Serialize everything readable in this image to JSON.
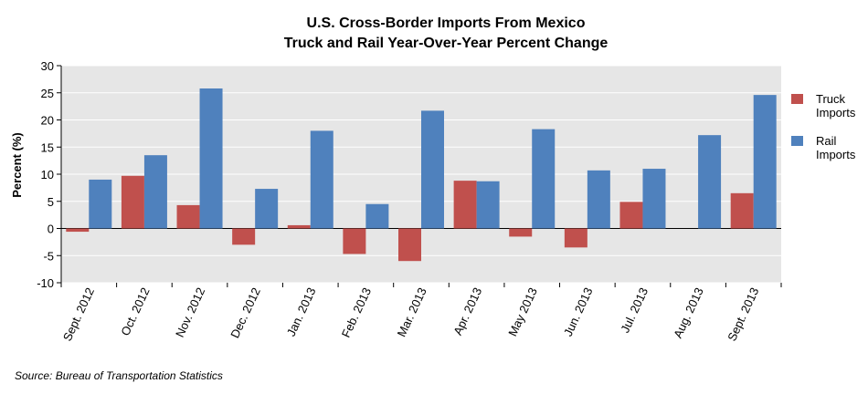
{
  "chart_data": {
    "type": "bar",
    "title": "U.S. Cross-Border Imports From Mexico",
    "subtitle": "Truck and Rail Year-Over-Year Percent Change",
    "xlabel": "",
    "ylabel": "Percent (%)",
    "ylim": [
      -10,
      30
    ],
    "yticks": [
      "30",
      "25",
      "20",
      "15",
      "10",
      "5",
      "0",
      "-5",
      "-10"
    ],
    "grid": true,
    "legend_position": "right",
    "categories": [
      "Sept. 2012",
      "Oct. 2012",
      "Nov. 2012",
      "Dec. 2012",
      "Jan. 2013",
      "Feb. 2013",
      "Mar. 2013",
      "Apr. 2013",
      "May 2013",
      "Jun. 2013",
      "Jul. 2013",
      "Aug. 2013",
      "Sept. 2013"
    ],
    "series": [
      {
        "name": "Truck Imports",
        "name_lines": [
          "Truck",
          "Imports"
        ],
        "color": "#c0504d",
        "values": [
          -0.6,
          9.7,
          4.3,
          -3.0,
          0.6,
          -4.7,
          -6.0,
          8.8,
          -1.5,
          -3.5,
          4.9,
          0.0,
          6.5
        ]
      },
      {
        "name": "Rail Imports",
        "name_lines": [
          "Rail",
          "Imports"
        ],
        "color": "#4f81bd",
        "values": [
          9.0,
          13.5,
          25.8,
          7.3,
          18.0,
          4.5,
          21.7,
          8.7,
          18.3,
          10.7,
          11.0,
          17.2,
          24.6
        ]
      }
    ]
  },
  "source": "Source: Bureau of Transportation Statistics"
}
